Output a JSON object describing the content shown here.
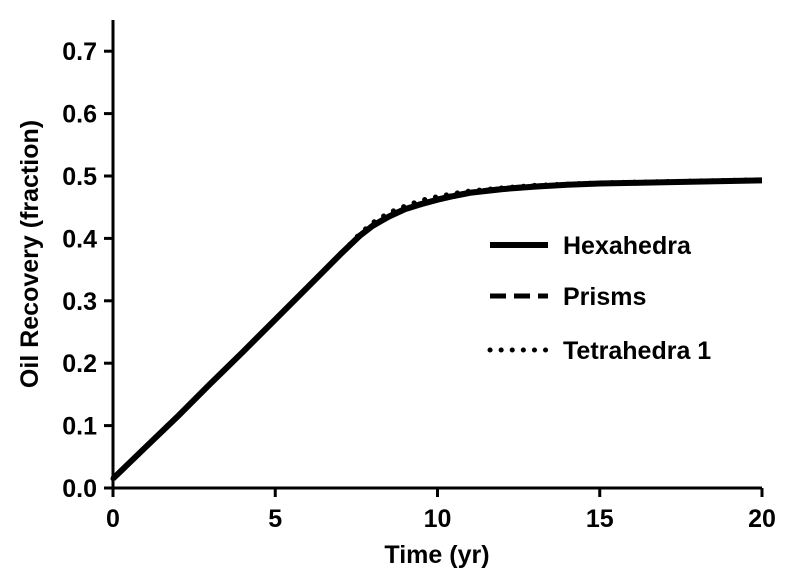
{
  "chart_data": {
    "type": "line",
    "title": "",
    "xlabel": "Time (yr)",
    "ylabel": "Oil Recovery (fraction)",
    "xlim": [
      0,
      20
    ],
    "ylim": [
      0,
      0.75
    ],
    "xticks": [
      0,
      5,
      10,
      15,
      20
    ],
    "yticks": [
      0.0,
      0.1,
      0.2,
      0.3,
      0.4,
      0.5,
      0.6,
      0.7
    ],
    "xtick_labels": [
      "0",
      "5",
      "10",
      "15",
      "20"
    ],
    "ytick_labels": [
      "0.0",
      "0.1",
      "0.2",
      "0.3",
      "0.4",
      "0.5",
      "0.6",
      "0.7"
    ],
    "grid": false,
    "legend_position": "right",
    "series": [
      {
        "name": "Hexahedra",
        "style": "solid",
        "color": "#000000",
        "x": [
          0,
          0.5,
          1,
          2,
          3,
          4,
          5,
          6,
          7,
          7.6,
          8,
          8.5,
          9,
          9.5,
          10,
          10.5,
          11,
          12,
          13,
          14,
          15,
          16,
          17,
          18,
          19,
          20
        ],
        "y": [
          0.015,
          0.04,
          0.065,
          0.115,
          0.167,
          0.218,
          0.27,
          0.322,
          0.374,
          0.404,
          0.42,
          0.435,
          0.447,
          0.455,
          0.462,
          0.468,
          0.473,
          0.479,
          0.483,
          0.486,
          0.488,
          0.489,
          0.49,
          0.491,
          0.492,
          0.493
        ]
      },
      {
        "name": "Prisms",
        "style": "dashed",
        "color": "#000000",
        "x": [
          0,
          0.5,
          1,
          2,
          3,
          4,
          5,
          6,
          7,
          7.6,
          8,
          8.5,
          9,
          9.5,
          10,
          10.5,
          11,
          12,
          13,
          14,
          15,
          16,
          17,
          18,
          19,
          20
        ],
        "y": [
          0.015,
          0.04,
          0.065,
          0.115,
          0.167,
          0.218,
          0.27,
          0.322,
          0.374,
          0.405,
          0.421,
          0.436,
          0.448,
          0.456,
          0.463,
          0.469,
          0.474,
          0.48,
          0.484,
          0.486,
          0.488,
          0.489,
          0.49,
          0.491,
          0.492,
          0.493
        ]
      },
      {
        "name": "Tetrahedra 1",
        "style": "dotted",
        "color": "#000000",
        "x": [
          0,
          0.5,
          1,
          2,
          3,
          4,
          5,
          6,
          7,
          7.6,
          8,
          8.5,
          9,
          9.5,
          10,
          10.5,
          11,
          12,
          13,
          14,
          15,
          16,
          17,
          18,
          19,
          20
        ],
        "y": [
          0.015,
          0.04,
          0.065,
          0.115,
          0.167,
          0.218,
          0.27,
          0.322,
          0.374,
          0.407,
          0.425,
          0.441,
          0.452,
          0.461,
          0.467,
          0.472,
          0.476,
          0.481,
          0.485,
          0.487,
          0.489,
          0.49,
          0.491,
          0.492,
          0.493,
          0.494
        ]
      }
    ]
  }
}
